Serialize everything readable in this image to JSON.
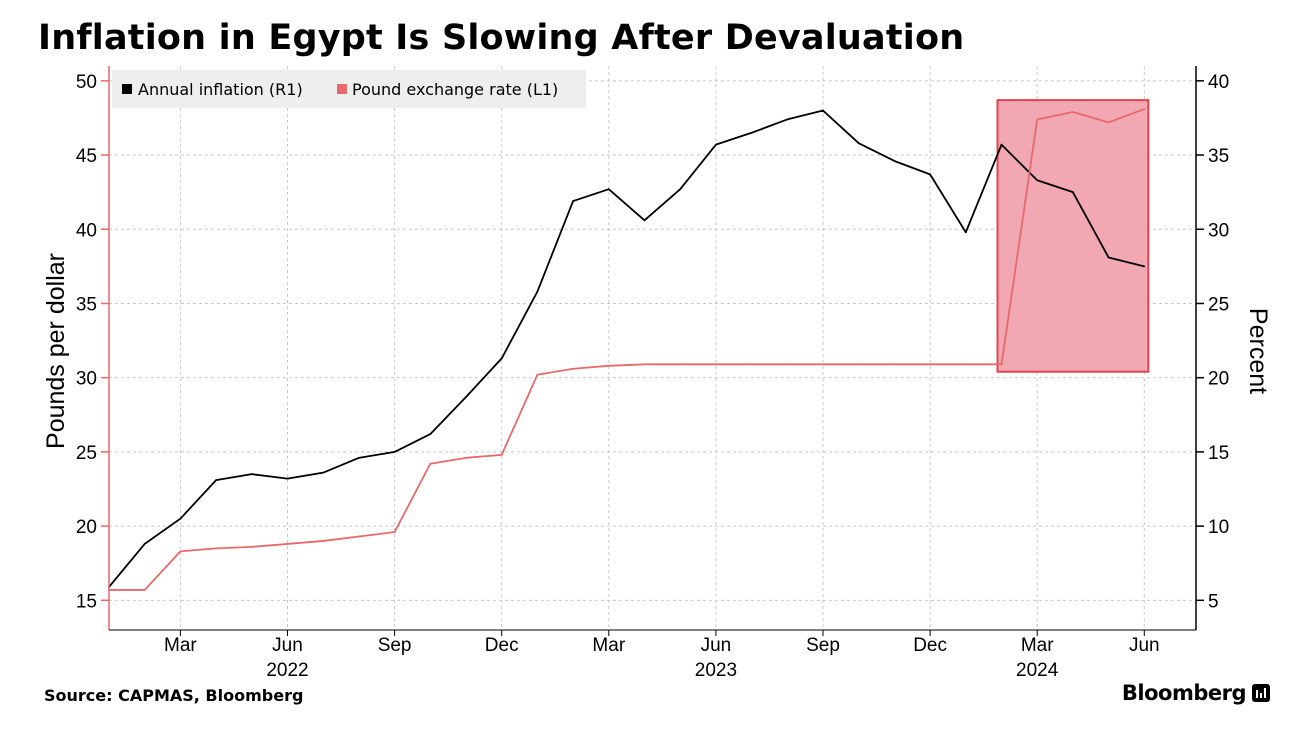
{
  "title": "Inflation in Egypt Is Slowing After Devaluation",
  "source": "Source: CAPMAS, Bloomberg",
  "brand": "Bloomberg",
  "colors": {
    "inflation": "#000000",
    "pound": "#e8696c",
    "highlight_fill": "#f1a8b3",
    "highlight_stroke": "#e0444f",
    "grid": "#c8c8c8"
  },
  "chart_data": {
    "type": "line",
    "left_axis": {
      "label": "Pounds per dollar",
      "ticks": [
        15,
        20,
        25,
        30,
        35,
        40,
        45,
        50
      ],
      "ylim": [
        13,
        51
      ]
    },
    "right_axis": {
      "label": "Percent",
      "ticks": [
        5,
        10,
        15,
        20,
        25,
        30,
        35,
        40
      ],
      "ylim": [
        3,
        41
      ]
    },
    "x_ticks": [
      {
        "label": "Mar",
        "year": "",
        "x": "2022-03"
      },
      {
        "label": "Jun",
        "year": "2022",
        "x": "2022-06"
      },
      {
        "label": "Sep",
        "year": "",
        "x": "2022-09"
      },
      {
        "label": "Dec",
        "year": "",
        "x": "2022-12"
      },
      {
        "label": "Mar",
        "year": "",
        "x": "2023-03"
      },
      {
        "label": "Jun",
        "year": "2023",
        "x": "2023-06"
      },
      {
        "label": "Sep",
        "year": "",
        "x": "2023-09"
      },
      {
        "label": "Dec",
        "year": "",
        "x": "2023-12"
      },
      {
        "label": "Mar",
        "year": "2024",
        "x": "2024-03"
      },
      {
        "label": "Jun",
        "year": "",
        "x": "2024-06"
      }
    ],
    "x": [
      "2022-01",
      "2022-02",
      "2022-03",
      "2022-04",
      "2022-05",
      "2022-06",
      "2022-07",
      "2022-08",
      "2022-09",
      "2022-10",
      "2022-11",
      "2022-12",
      "2023-01",
      "2023-02",
      "2023-03",
      "2023-04",
      "2023-05",
      "2023-06",
      "2023-07",
      "2023-08",
      "2023-09",
      "2023-10",
      "2023-11",
      "2023-12",
      "2024-01",
      "2024-02",
      "2024-03",
      "2024-04",
      "2024-05",
      "2024-06"
    ],
    "series": [
      {
        "name": "Annual inflation (R1)",
        "axis": "right",
        "color": "#000000",
        "values": [
          5.9,
          8.8,
          10.5,
          13.1,
          13.5,
          13.2,
          13.6,
          14.6,
          15.0,
          16.2,
          18.7,
          21.3,
          25.8,
          31.9,
          32.7,
          30.6,
          32.7,
          35.7,
          36.5,
          37.4,
          38.0,
          35.8,
          34.6,
          33.7,
          29.8,
          35.7,
          33.3,
          32.5,
          28.1,
          27.5
        ]
      },
      {
        "name": "Pound exchange rate (L1)",
        "axis": "left",
        "color": "#e8696c",
        "values": [
          15.7,
          15.7,
          18.3,
          18.5,
          18.6,
          18.8,
          19.0,
          19.3,
          19.6,
          24.2,
          24.6,
          24.8,
          30.2,
          30.6,
          30.8,
          30.9,
          30.9,
          30.9,
          30.9,
          30.9,
          30.9,
          30.9,
          30.9,
          30.9,
          30.9,
          30.9,
          47.4,
          47.9,
          47.2,
          48.1
        ]
      }
    ],
    "highlight": {
      "x_start": "2024-02",
      "x_end": "2024-06",
      "ylim_left": [
        30.4,
        48.7
      ]
    },
    "grid": true,
    "legend": "top-left"
  }
}
